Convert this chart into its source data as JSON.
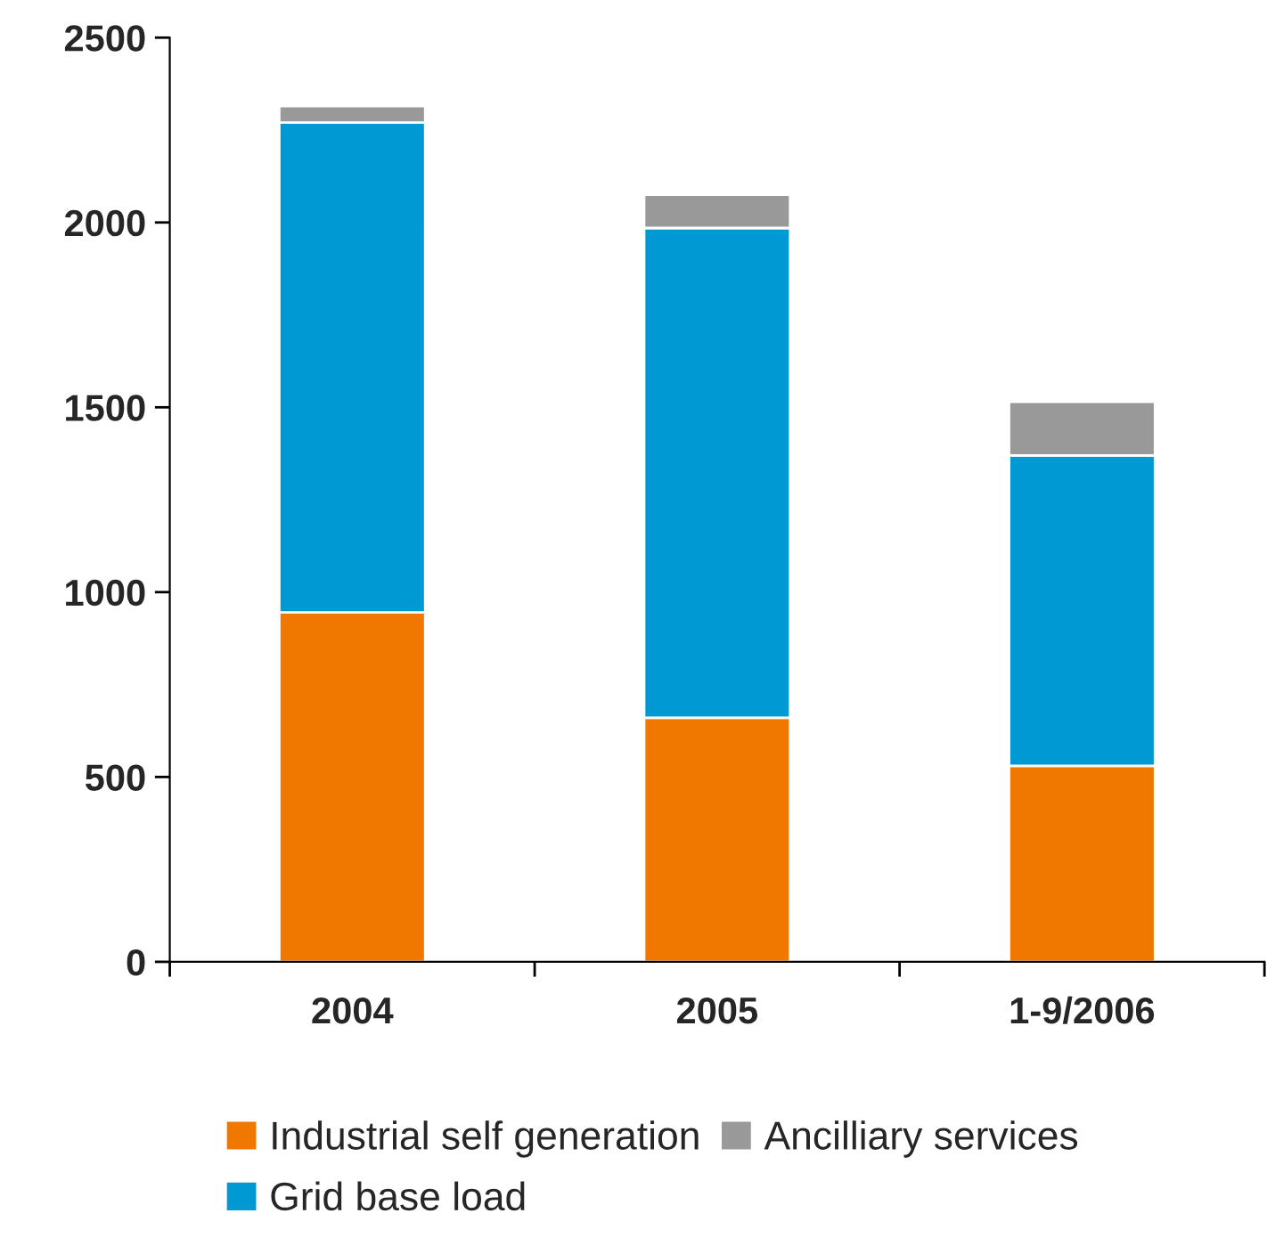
{
  "chart_data": {
    "type": "bar",
    "stacked": true,
    "categories": [
      "2004",
      "2005",
      "1-9/2006"
    ],
    "series": [
      {
        "name": "Industrial self generation",
        "color": "#f07800",
        "values": [
          945,
          660,
          530
        ]
      },
      {
        "name": "Grid base load",
        "color": "#0099d4",
        "values": [
          1325,
          1325,
          840
        ]
      },
      {
        "name": "Ancilliary services",
        "color": "#999999",
        "values": [
          45,
          90,
          145
        ]
      }
    ],
    "ylim": [
      0,
      2500
    ],
    "yticks": [
      0,
      500,
      1000,
      1500,
      2000,
      2500
    ],
    "grid": false,
    "legend": "bottom"
  }
}
